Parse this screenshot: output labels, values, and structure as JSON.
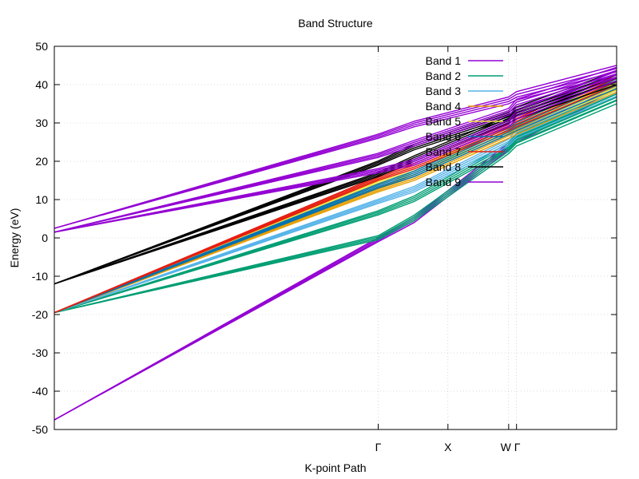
{
  "chart_data": {
    "type": "line",
    "title": "Band Structure",
    "xlabel": "K-point Path",
    "ylabel": "Energy (eV)",
    "xlim": [
      0,
      1
    ],
    "ylim": [
      -50,
      50
    ],
    "yticks": [
      -50,
      -40,
      -30,
      -20,
      -10,
      0,
      10,
      20,
      30,
      40,
      50
    ],
    "xticks": [
      {
        "label": "Γ",
        "x": 0.576
      },
      {
        "label": "X",
        "x": 0.7
      },
      {
        "label": "W",
        "x": 0.808
      },
      {
        "label": "Γ",
        "x": 0.822
      }
    ],
    "grid": true,
    "legend_position": "top-right",
    "series": [
      {
        "name": "Band 1",
        "color": "#9400d3",
        "lines": [
          {
            "x": [
              0,
              0.576,
              0.64,
              0.808,
              0.822,
              1
            ],
            "y": [
              -47.5,
              -1,
              4,
              23,
              25,
              38
            ]
          }
        ]
      },
      {
        "name": "Band 2",
        "color": "#009e73",
        "lines": [
          {
            "x": [
              0,
              0.576,
              0.64,
              0.808,
              0.822,
              1
            ],
            "y": [
              -19.5,
              -0.5,
              4.5,
              22,
              24,
              35
            ]
          },
          {
            "x": [
              0,
              0.576,
              0.64,
              0.808,
              0.822,
              1
            ],
            "y": [
              -19.5,
              6,
              9.5,
              23,
              25,
              36
            ]
          }
        ]
      },
      {
        "name": "Band 3",
        "color": "#56b4e9",
        "lines": [
          {
            "x": [
              0,
              0.576,
              0.64,
              0.808,
              0.822,
              1
            ],
            "y": [
              -19.5,
              9,
              12,
              24,
              26,
              37
            ]
          }
        ]
      },
      {
        "name": "Band 4",
        "color": "#e69f00",
        "lines": [
          {
            "x": [
              0,
              0.576,
              0.64,
              0.808,
              0.822,
              1
            ],
            "y": [
              -19.5,
              12,
              15,
              26,
              27,
              38
            ]
          }
        ]
      },
      {
        "name": "Band 5",
        "color": "#f0e442",
        "lines": [
          {
            "x": [
              0,
              0.576,
              0.64,
              0.808,
              0.822,
              1
            ],
            "y": [
              -19.5,
              14,
              16.5,
              27,
              28,
              38.5
            ]
          }
        ]
      },
      {
        "name": "Band 6",
        "color": "#0072b2",
        "lines": [
          {
            "x": [
              0,
              0.576,
              0.64,
              0.808,
              0.822,
              1
            ],
            "y": [
              -19.5,
              13,
              16,
              27,
              28,
              39
            ]
          }
        ]
      },
      {
        "name": "Band 7",
        "color": "#e51e10",
        "lines": [
          {
            "x": [
              0,
              0.576,
              0.64,
              0.808,
              0.822,
              1
            ],
            "y": [
              -19.5,
              15,
              18,
              28,
              29,
              40
            ]
          }
        ]
      },
      {
        "name": "Band 8",
        "color": "#000000",
        "lines": [
          {
            "x": [
              0,
              0.576,
              0.64,
              0.808,
              0.822,
              1
            ],
            "y": [
              -12,
              16,
              20,
              30,
              31,
              40
            ]
          },
          {
            "x": [
              0,
              0.576,
              0.64,
              0.808,
              0.822,
              1
            ],
            "y": [
              -12,
              19,
              23,
              31,
              32,
              41
            ]
          }
        ]
      },
      {
        "name": "Band 9",
        "color": "#9400d3",
        "lines": [
          {
            "x": [
              0,
              0.576,
              0.64,
              0.808,
              0.822,
              1
            ],
            "y": [
              1.5,
              17,
              19,
              29,
              31,
              41
            ]
          },
          {
            "x": [
              0,
              0.576,
              0.64,
              0.808,
              0.822,
              1
            ],
            "y": [
              1.5,
              21,
              24,
              32,
              34,
              42
            ]
          },
          {
            "x": [
              0,
              0.576,
              0.64,
              0.808,
              0.822,
              1
            ],
            "y": [
              2.5,
              26,
              29,
              35,
              36,
              42.5
            ]
          }
        ]
      }
    ]
  }
}
